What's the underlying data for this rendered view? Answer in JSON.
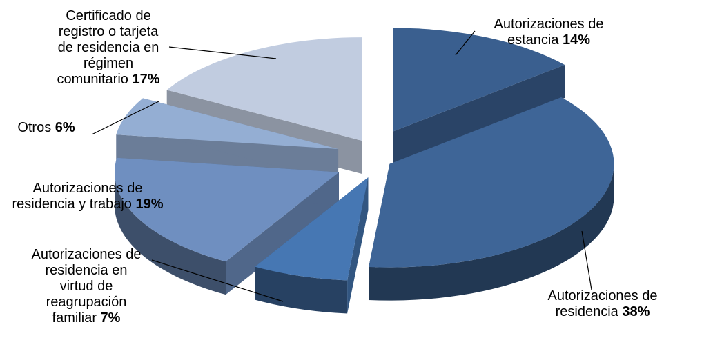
{
  "chart_data": {
    "type": "pie",
    "title": "",
    "style": "exploded-3d",
    "legend": "none",
    "slices": [
      {
        "name": "Autorizaciones de estancia",
        "value": 14,
        "pct_label": "14%",
        "color": "#3a5f8f"
      },
      {
        "name": "Autorizaciones de residencia",
        "value": 38,
        "pct_label": "38%",
        "color": "#3e6597"
      },
      {
        "name": "Autorizaciones de residencia en virtud de reagrupación familiar",
        "value": 7,
        "pct_label": "7%",
        "color": "#4677b3"
      },
      {
        "name": "Autorizaciones de residencia y trabajo",
        "value": 19,
        "pct_label": "19%",
        "color": "#6f8fc0"
      },
      {
        "name": "Otros",
        "value": 6,
        "pct_label": "6%",
        "color": "#94aed3"
      },
      {
        "name": "Certificado de registro o tarjeta de residencia en régimen comunitario",
        "value": 17,
        "pct_label": "17%",
        "color": "#c1cce0"
      }
    ],
    "label_lines": [
      [
        "Autorizaciones de",
        "estancia"
      ],
      [
        "Autorizaciones de",
        "residencia"
      ],
      [
        "Autorizaciones de",
        "residencia en",
        "virtud de",
        "reagrupación",
        "familiar"
      ],
      [
        "Autorizaciones de",
        "residencia y trabajo"
      ],
      [
        "Otros"
      ],
      [
        "Certificado de",
        "registro o tarjeta",
        "de residencia en",
        "régimen",
        "comunitario"
      ]
    ]
  }
}
